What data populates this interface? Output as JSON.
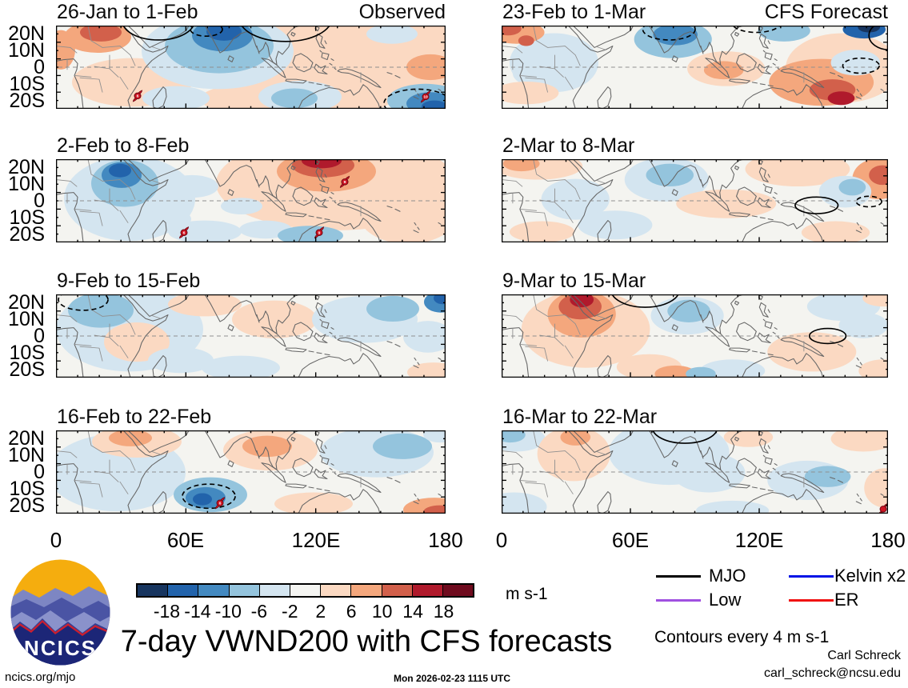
{
  "chart_data": {
    "type": "heatmap",
    "title": "7-day VWND200 with CFS forecasts",
    "units_label": "m s-1",
    "contour_note": "Contours every 4 m s-1",
    "columns": [
      "Observed",
      "CFS Forecast"
    ],
    "x_axis": {
      "ticks": [
        "0",
        "60E",
        "120E",
        "180"
      ]
    },
    "y_axis": {
      "ticks": [
        "20N",
        "10N",
        "0",
        "10S",
        "20S"
      ]
    },
    "colorbar": {
      "tick_labels": [
        "-18",
        "-14",
        "-10",
        "-6",
        "-2",
        "2",
        "6",
        "10",
        "14",
        "18"
      ],
      "colors": [
        "#17355f",
        "#2263ab",
        "#4389c0",
        "#94c4dd",
        "#d4e5f0",
        "#f5f5f2",
        "#fbd9c2",
        "#f4a77d",
        "#d2604b",
        "#b01a2c",
        "#6f0b1e"
      ]
    },
    "legend": {
      "items": [
        {
          "label": "MJO",
          "color": "#000000"
        },
        {
          "label": "Kelvin x2",
          "color": "#0014e6"
        },
        {
          "label": "Low",
          "color": "#a050e0"
        },
        {
          "label": "ER",
          "color": "#f01010"
        }
      ]
    },
    "panels": [
      {
        "title": "26-Jan to 1-Feb",
        "corner_label": "Observed",
        "blobs": [
          [
            360,
            40,
            160,
            62,
            6
          ],
          [
            95,
            75,
            75,
            32,
            6
          ],
          [
            300,
            97,
            120,
            26,
            6
          ],
          [
            202,
            34,
            95,
            50,
            4
          ],
          [
            204,
            27,
            68,
            36,
            3
          ],
          [
            208,
            13,
            38,
            21,
            2
          ],
          [
            210,
            8,
            22,
            12,
            1
          ],
          [
            420,
            11,
            32,
            13,
            4
          ],
          [
            150,
            96,
            42,
            16,
            4
          ],
          [
            305,
            94,
            52,
            21,
            4
          ],
          [
            298,
            96,
            29,
            13,
            3
          ],
          [
            462,
            99,
            48,
            22,
            3
          ],
          [
            468,
            103,
            30,
            15,
            2
          ],
          [
            473,
            107,
            16,
            8,
            1
          ],
          [
            52,
            15,
            42,
            21,
            7
          ],
          [
            56,
            9,
            26,
            12,
            8
          ],
          [
            6,
            32,
            18,
            26,
            7
          ],
          [
            468,
            55,
            30,
            17,
            7
          ]
        ],
        "contours": [
          [
            128,
            -6,
            45,
            25,
            0
          ],
          [
            287,
            -10,
            58,
            31,
            0
          ],
          [
            188,
            5,
            20,
            9,
            1
          ],
          [
            452,
            103,
            42,
            19,
            1
          ]
        ],
        "cyclones": [
          [
            102,
            93,
            "6"
          ],
          [
            462,
            94,
            "10"
          ]
        ]
      },
      {
        "title": "2-Feb to 8-Feb",
        "corner_label": "",
        "blobs": [
          [
            350,
            32,
            150,
            62,
            6
          ],
          [
            440,
            72,
            62,
            40,
            6
          ],
          [
            92,
            52,
            82,
            56,
            4
          ],
          [
            86,
            32,
            42,
            31,
            3
          ],
          [
            82,
            21,
            25,
            17,
            2
          ],
          [
            80,
            15,
            14,
            9,
            1
          ],
          [
            170,
            36,
            33,
            15,
            4
          ],
          [
            140,
            79,
            29,
            13,
            4
          ],
          [
            186,
            96,
            46,
            15,
            4
          ],
          [
            262,
            93,
            33,
            12,
            4
          ],
          [
            318,
            101,
            41,
            13,
            3
          ],
          [
            232,
            62,
            26,
            11,
            4
          ],
          [
            338,
            16,
            62,
            27,
            7
          ],
          [
            334,
            8,
            39,
            16,
            8
          ],
          [
            332,
            2,
            25,
            10,
            9
          ]
        ],
        "contours": [],
        "cyclones": [
          [
            160,
            97,
            "6"
          ],
          [
            329,
            97,
            "9"
          ],
          [
            361,
            30,
            "9"
          ]
        ]
      },
      {
        "title": "9-Feb to 15-Feb",
        "corner_label": "",
        "blobs": [
          [
            92,
            46,
            92,
            56,
            4
          ],
          [
            56,
            21,
            41,
            23,
            3
          ],
          [
            101,
            63,
            41,
            26,
            6
          ],
          [
            186,
            13,
            46,
            16,
            6
          ],
          [
            273,
            33,
            53,
            25,
            6
          ],
          [
            386,
            33,
            66,
            31,
            4
          ],
          [
            421,
            19,
            33,
            17,
            3
          ],
          [
            481,
            10,
            21,
            14,
            2
          ],
          [
            484,
            5,
            12,
            8,
            1
          ],
          [
            231,
            97,
            49,
            16,
            4
          ],
          [
            156,
            87,
            41,
            17,
            4
          ],
          [
            465,
            56,
            31,
            21,
            4
          ],
          [
            472,
            103,
            33,
            13,
            6
          ]
        ],
        "contours": [
          [
            34,
            7,
            31,
            14,
            1
          ]
        ],
        "cyclones": []
      },
      {
        "title": "16-Feb to 22-Feb",
        "corner_label": "",
        "blobs": [
          [
            76,
            56,
            86,
            51,
            4
          ],
          [
            101,
            15,
            56,
            21,
            6
          ],
          [
            93,
            10,
            27,
            11,
            7
          ],
          [
            268,
            26,
            59,
            27,
            6
          ],
          [
            264,
            21,
            31,
            14,
            7
          ],
          [
            401,
            29,
            71,
            33,
            4
          ],
          [
            433,
            21,
            37,
            17,
            3
          ],
          [
            322,
            97,
            49,
            15,
            6
          ],
          [
            193,
            85,
            46,
            23,
            3
          ],
          [
            187,
            89,
            25,
            14,
            2
          ],
          [
            183,
            91,
            12,
            8,
            1
          ],
          [
            473,
            105,
            39,
            16,
            7
          ],
          [
            480,
            108,
            21,
            9,
            8
          ],
          [
            480,
            5,
            21,
            11,
            4
          ]
        ],
        "contours": [
          [
            191,
            87,
            33,
            16,
            1
          ]
        ],
        "cyclones": [
          [
            205,
            96,
            "6"
          ]
        ]
      },
      {
        "title": "23-Feb to 1-Mar",
        "corner_label": "CFS Forecast",
        "blobs": [
          [
            66,
            49,
            56,
            39,
            4
          ],
          [
            43,
            63,
            29,
            17,
            4
          ],
          [
            19,
            9,
            35,
            15,
            7
          ],
          [
            8,
            4,
            17,
            9,
            8
          ],
          [
            31,
            20,
            10,
            7,
            8
          ],
          [
            216,
            18,
            49,
            25,
            3
          ],
          [
            219,
            12,
            28,
            14,
            2
          ],
          [
            430,
            56,
            72,
            46,
            6
          ],
          [
            283,
            57,
            49,
            23,
            6
          ],
          [
            280,
            59,
            25,
            12,
            7
          ],
          [
            403,
            75,
            66,
            31,
            7
          ],
          [
            417,
            85,
            29,
            14,
            8
          ],
          [
            428,
            96,
            17,
            9,
            9
          ],
          [
            356,
            7,
            33,
            14,
            3
          ],
          [
            457,
            5,
            27,
            12,
            1
          ],
          [
            463,
            2,
            14,
            7,
            0
          ],
          [
            446,
            49,
            31,
            17,
            4
          ],
          [
            31,
            89,
            41,
            15,
            6
          ]
        ],
        "contours": [
          [
            211,
            5,
            33,
            14,
            1
          ],
          [
            453,
            53,
            23,
            10,
            1
          ],
          [
            489,
            13,
            26,
            19,
            0
          ],
          [
            321,
            -4,
            31,
            13,
            1
          ]
        ],
        "cyclones": []
      },
      {
        "title": "2-Mar to 8-Mar",
        "corner_label": "",
        "blobs": [
          [
            46,
            9,
            56,
            18,
            6
          ],
          [
            25,
            6,
            23,
            10,
            7
          ],
          [
            373,
            13,
            66,
            23,
            6
          ],
          [
            208,
            27,
            53,
            29,
            4
          ],
          [
            212,
            21,
            30,
            15,
            3
          ],
          [
            93,
            53,
            43,
            27,
            4
          ],
          [
            283,
            59,
            63,
            19,
            6
          ],
          [
            475,
            26,
            33,
            27,
            7
          ],
          [
            480,
            21,
            17,
            13,
            8
          ],
          [
            433,
            43,
            33,
            21,
            4
          ],
          [
            442,
            37,
            17,
            11,
            3
          ],
          [
            143,
            87,
            47,
            19,
            4
          ],
          [
            421,
            97,
            43,
            15,
            6
          ],
          [
            51,
            96,
            41,
            14,
            6
          ]
        ],
        "contours": [
          [
            397,
            61,
            27,
            11,
            0
          ],
          [
            463,
            56,
            16,
            7,
            1
          ]
        ],
        "cyclones": []
      },
      {
        "title": "9-Mar to 15-Mar",
        "corner_label": "",
        "blobs": [
          [
            106,
            46,
            81,
            51,
            6
          ],
          [
            101,
            26,
            43,
            31,
            7
          ],
          [
            99,
            16,
            27,
            17,
            8
          ],
          [
            101,
            7,
            15,
            10,
            9
          ],
          [
            234,
            28,
            46,
            25,
            4
          ],
          [
            236,
            22,
            27,
            15,
            3
          ],
          [
            431,
            16,
            46,
            19,
            4
          ],
          [
            456,
            41,
            31,
            17,
            4
          ],
          [
            391,
            76,
            56,
            26,
            6
          ],
          [
            186,
            96,
            41,
            17,
            6
          ],
          [
            219,
            105,
            26,
            11,
            7
          ],
          [
            291,
            101,
            41,
            15,
            4
          ],
          [
            251,
            105,
            19,
            9,
            3
          ],
          [
            481,
            101,
            31,
            15,
            6
          ],
          [
            481,
            5,
            26,
            11,
            6
          ]
        ],
        "contours": [
          [
            181,
            -6,
            43,
            23,
            0
          ],
          [
            411,
            55,
            23,
            10,
            0
          ]
        ],
        "cyclones": []
      },
      {
        "title": "16-Mar to 22-Mar",
        "corner_label": "",
        "blobs": [
          [
            19,
            11,
            36,
            17,
            4
          ],
          [
            11,
            6,
            19,
            10,
            3
          ],
          [
            16,
            101,
            41,
            19,
            4
          ],
          [
            211,
            29,
            76,
            43,
            4
          ],
          [
            261,
            56,
            46,
            26,
            4
          ],
          [
            91,
            31,
            46,
            36,
            6
          ],
          [
            93,
            9,
            19,
            11,
            7
          ],
          [
            311,
            9,
            31,
            13,
            6
          ],
          [
            456,
            11,
            41,
            17,
            6
          ],
          [
            386,
            66,
            51,
            26,
            4
          ],
          [
            411,
            61,
            29,
            14,
            3
          ],
          [
            483,
            76,
            26,
            26,
            6
          ],
          [
            291,
            106,
            46,
            13,
            4
          ]
        ],
        "contours": [
          [
            231,
            -4,
            41,
            21,
            0
          ]
        ],
        "cyclones": [
          [
            481,
            104,
            ""
          ]
        ]
      }
    ]
  },
  "logo": {
    "text": "NCICS"
  },
  "footer": {
    "site": "ncics.org/mjo",
    "timestamp": "Mon 2026-02-23 1115 UTC",
    "credit_name": "Carl Schreck",
    "credit_email": "carl_schreck@ncsu.edu"
  }
}
